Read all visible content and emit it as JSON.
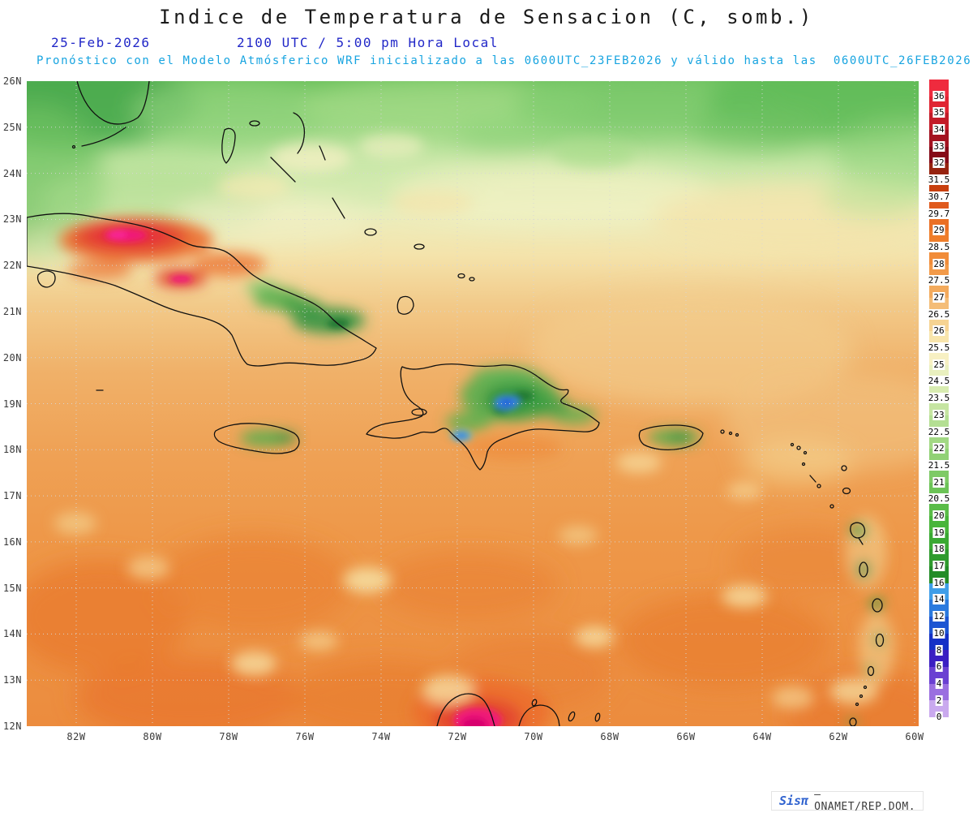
{
  "header": {
    "title": "Indice de Temperatura de Sensacion (C, somb.)",
    "date": "25-Feb-2026",
    "time": "2100 UTC / 5:00 pm Hora Local",
    "model_line": "Pronóstico con el Modelo Atmósferico WRF inicializado a las 0600UTC_23FEB2026 y válido hasta las  0600UTC_26FEB2026"
  },
  "axes": {
    "lat_labels": [
      "26N",
      "25N",
      "24N",
      "23N",
      "22N",
      "21N",
      "20N",
      "19N",
      "18N",
      "17N",
      "16N",
      "15N",
      "14N",
      "13N",
      "12N"
    ],
    "lon_labels": [
      "82W",
      "80W",
      "78W",
      "76W",
      "74W",
      "72W",
      "70W",
      "68W",
      "66W",
      "64W",
      "62W",
      "60W"
    ]
  },
  "colorbar": {
    "labels": [
      "36",
      "35",
      "34",
      "33",
      "32",
      "31.5",
      "30.7",
      "29.7",
      "29",
      "28.5",
      "28",
      "27.5",
      "27",
      "26.5",
      "26",
      "25.5",
      "25",
      "24.5",
      "23.5",
      "23",
      "22.5",
      "22",
      "21.5",
      "21",
      "20.5",
      "20",
      "19",
      "18",
      "17",
      "16",
      "14",
      "12",
      "10",
      "8",
      "6",
      "4",
      "2",
      "0"
    ],
    "cell_colors": [
      "#ef2b3e",
      "#e02432",
      "#c31b28",
      "#a31220",
      "#850a18",
      "#96230f",
      "#c8400f",
      "#e05a1d",
      "#ea6f24",
      "#ef7e2b",
      "#f18c39",
      "#f29a49",
      "#f3aa5c",
      "#f4bd77",
      "#f6d392",
      "#f8e5ac",
      "#f7f0c3",
      "#e9f0bf",
      "#d8ecb1",
      "#c6e5a2",
      "#b4df93",
      "#a2d884",
      "#90d175",
      "#7eca66",
      "#6cc357",
      "#5abc48",
      "#48b53a",
      "#3aa933",
      "#2f9b2e",
      "#238c28",
      "#3f9ee8",
      "#2b7ade",
      "#1d55d2",
      "#1531c6",
      "#3a1ec2",
      "#6a40d2",
      "#9a6fe0",
      "#c9a9ee",
      "#ffffff"
    ]
  },
  "watermark": {
    "logo": "Sisπ",
    "text": "– ONAMET/REP.DOM."
  }
}
